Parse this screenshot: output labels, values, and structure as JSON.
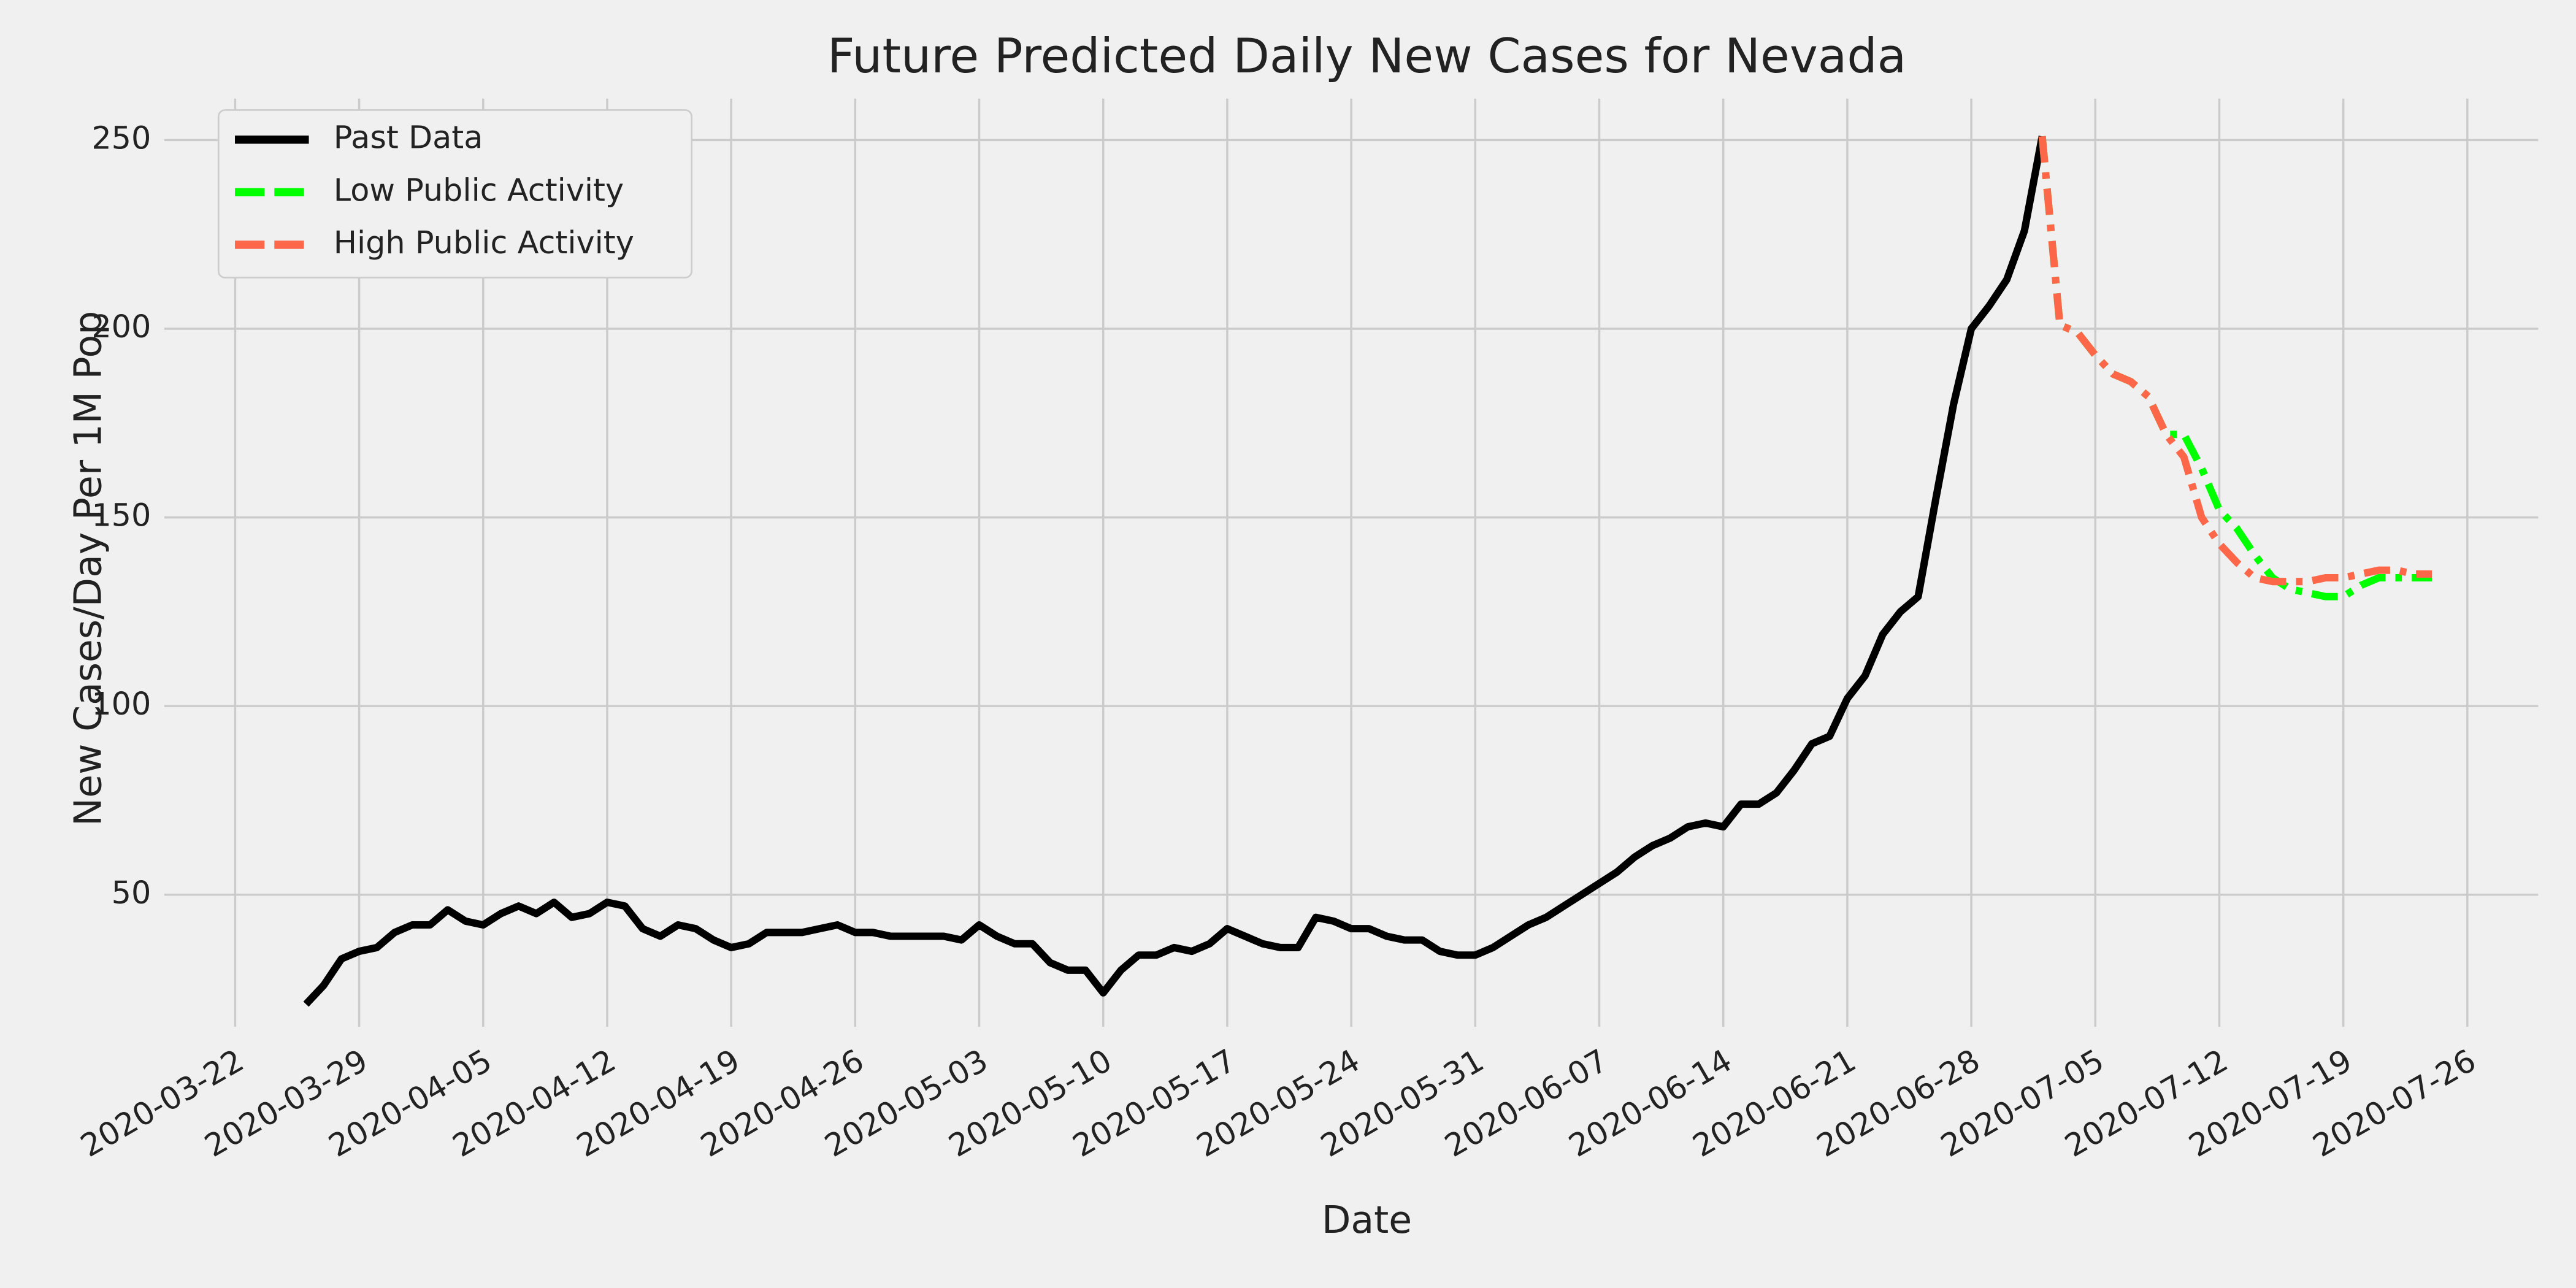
{
  "chart_data": {
    "type": "line",
    "title": "Future Predicted Daily New Cases for Nevada",
    "x_label": "Date",
    "y_label": "New Cases/Day Per 1M Pop",
    "x": [
      "2020-03-26",
      "2020-03-27",
      "2020-03-28",
      "2020-03-29",
      "2020-03-30",
      "2020-03-31",
      "2020-04-01",
      "2020-04-02",
      "2020-04-03",
      "2020-04-04",
      "2020-04-05",
      "2020-04-06",
      "2020-04-07",
      "2020-04-08",
      "2020-04-09",
      "2020-04-10",
      "2020-04-11",
      "2020-04-12",
      "2020-04-13",
      "2020-04-14",
      "2020-04-15",
      "2020-04-16",
      "2020-04-17",
      "2020-04-18",
      "2020-04-19",
      "2020-04-20",
      "2020-04-21",
      "2020-04-22",
      "2020-04-23",
      "2020-04-24",
      "2020-04-25",
      "2020-04-26",
      "2020-04-27",
      "2020-04-28",
      "2020-04-29",
      "2020-04-30",
      "2020-05-01",
      "2020-05-02",
      "2020-05-03",
      "2020-05-04",
      "2020-05-05",
      "2020-05-06",
      "2020-05-07",
      "2020-05-08",
      "2020-05-09",
      "2020-05-10",
      "2020-05-11",
      "2020-05-12",
      "2020-05-13",
      "2020-05-14",
      "2020-05-15",
      "2020-05-16",
      "2020-05-17",
      "2020-05-18",
      "2020-05-19",
      "2020-05-20",
      "2020-05-21",
      "2020-05-22",
      "2020-05-23",
      "2020-05-24",
      "2020-05-25",
      "2020-05-26",
      "2020-05-27",
      "2020-05-28",
      "2020-05-29",
      "2020-05-30",
      "2020-05-31",
      "2020-06-01",
      "2020-06-02",
      "2020-06-03",
      "2020-06-04",
      "2020-06-05",
      "2020-06-06",
      "2020-06-07",
      "2020-06-08",
      "2020-06-09",
      "2020-06-10",
      "2020-06-11",
      "2020-06-12",
      "2020-06-13",
      "2020-06-14",
      "2020-06-15",
      "2020-06-16",
      "2020-06-17",
      "2020-06-18",
      "2020-06-19",
      "2020-06-20",
      "2020-06-21",
      "2020-06-22",
      "2020-06-23",
      "2020-06-24",
      "2020-06-25",
      "2020-06-26",
      "2020-06-27",
      "2020-06-28",
      "2020-06-29",
      "2020-06-30",
      "2020-07-01",
      "2020-07-02",
      "2020-07-03",
      "2020-07-04",
      "2020-07-05",
      "2020-07-06",
      "2020-07-07",
      "2020-07-08",
      "2020-07-09",
      "2020-07-10",
      "2020-07-11",
      "2020-07-12",
      "2020-07-13",
      "2020-07-14",
      "2020-07-15",
      "2020-07-16",
      "2020-07-17",
      "2020-07-18",
      "2020-07-19",
      "2020-07-20",
      "2020-07-21",
      "2020-07-22",
      "2020-07-23",
      "2020-07-24"
    ],
    "series": [
      {
        "name": "Past Data",
        "color": "#000000",
        "dash": "solid",
        "values": [
          21,
          26,
          33,
          35,
          36,
          40,
          42,
          42,
          46,
          43,
          42,
          45,
          47,
          45,
          48,
          44,
          45,
          48,
          47,
          41,
          39,
          42,
          41,
          38,
          36,
          37,
          40,
          40,
          40,
          41,
          42,
          40,
          40,
          39,
          39,
          39,
          39,
          38,
          42,
          39,
          37,
          37,
          32,
          30,
          30,
          24,
          30,
          34,
          34,
          36,
          35,
          37,
          41,
          39,
          37,
          36,
          36,
          44,
          43,
          41,
          41,
          39,
          38,
          38,
          35,
          34,
          34,
          36,
          39,
          42,
          44,
          47,
          50,
          53,
          56,
          60,
          63,
          65,
          68,
          69,
          68,
          74,
          74,
          77,
          83,
          90,
          92,
          102,
          108,
          119,
          125,
          129,
          155,
          180,
          200,
          206,
          213,
          226,
          251,
          null,
          null,
          null,
          null,
          null,
          null,
          null,
          null,
          null,
          null,
          null,
          null,
          null,
          null,
          null,
          null,
          null,
          null,
          null,
          null,
          null,
          null
        ]
      },
      {
        "name": "Low Public Activity",
        "color": "#00ff00",
        "dash": "dashdot",
        "values": [
          null,
          null,
          null,
          null,
          null,
          null,
          null,
          null,
          null,
          null,
          null,
          null,
          null,
          null,
          null,
          null,
          null,
          null,
          null,
          null,
          null,
          null,
          null,
          null,
          null,
          null,
          null,
          null,
          null,
          null,
          null,
          null,
          null,
          null,
          null,
          null,
          null,
          null,
          null,
          null,
          null,
          null,
          null,
          null,
          null,
          null,
          null,
          null,
          null,
          null,
          null,
          null,
          null,
          null,
          null,
          null,
          null,
          null,
          null,
          null,
          null,
          null,
          null,
          null,
          null,
          null,
          null,
          null,
          null,
          null,
          null,
          null,
          null,
          null,
          null,
          null,
          null,
          null,
          null,
          null,
          null,
          null,
          null,
          null,
          null,
          null,
          null,
          null,
          null,
          null,
          null,
          null,
          null,
          null,
          null,
          null,
          null,
          null,
          251,
          201,
          199,
          193,
          188,
          186,
          182,
          172,
          172,
          163,
          152,
          147,
          140,
          134,
          131,
          130,
          129,
          129,
          132,
          134,
          134,
          134,
          134
        ]
      },
      {
        "name": "High Public Activity",
        "color": "#fc6749",
        "dash": "dashdot",
        "values": [
          null,
          null,
          null,
          null,
          null,
          null,
          null,
          null,
          null,
          null,
          null,
          null,
          null,
          null,
          null,
          null,
          null,
          null,
          null,
          null,
          null,
          null,
          null,
          null,
          null,
          null,
          null,
          null,
          null,
          null,
          null,
          null,
          null,
          null,
          null,
          null,
          null,
          null,
          null,
          null,
          null,
          null,
          null,
          null,
          null,
          null,
          null,
          null,
          null,
          null,
          null,
          null,
          null,
          null,
          null,
          null,
          null,
          null,
          null,
          null,
          null,
          null,
          null,
          null,
          null,
          null,
          null,
          null,
          null,
          null,
          null,
          null,
          null,
          null,
          null,
          null,
          null,
          null,
          null,
          null,
          null,
          null,
          null,
          null,
          null,
          null,
          null,
          null,
          null,
          null,
          null,
          null,
          null,
          null,
          null,
          null,
          null,
          null,
          251,
          201,
          199,
          193,
          188,
          186,
          182,
          172,
          166,
          150,
          143,
          138,
          134,
          133,
          133,
          133,
          134,
          134,
          135,
          136,
          136,
          135,
          135
        ]
      }
    ],
    "xlim": [
      "2020-03-18",
      "2020-07-30"
    ],
    "xticks": [
      "2020-03-22",
      "2020-03-29",
      "2020-04-05",
      "2020-04-12",
      "2020-04-19",
      "2020-04-26",
      "2020-05-03",
      "2020-05-10",
      "2020-05-17",
      "2020-05-24",
      "2020-05-31",
      "2020-06-07",
      "2020-06-14",
      "2020-06-21",
      "2020-06-28",
      "2020-07-05",
      "2020-07-12",
      "2020-07-19",
      "2020-07-26"
    ],
    "ylim": [
      15,
      261
    ],
    "yticks": [
      50,
      100,
      150,
      200,
      250
    ],
    "grid": true,
    "legend": "upper left"
  }
}
